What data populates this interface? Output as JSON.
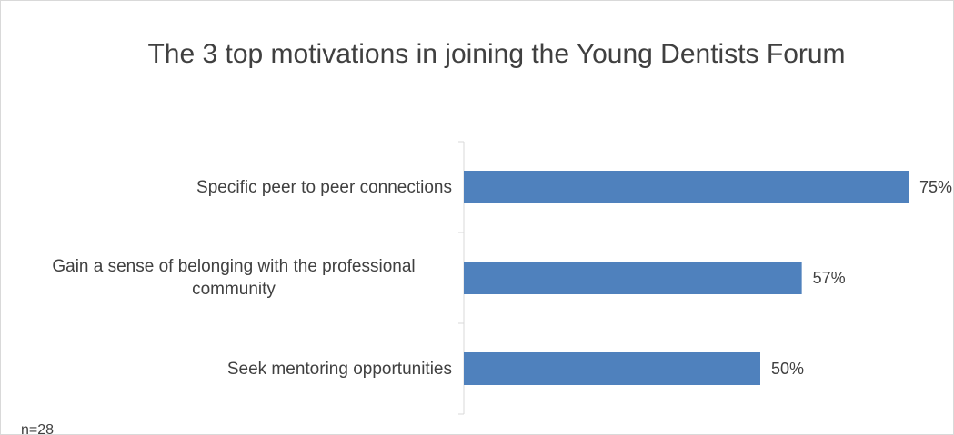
{
  "chart_data": {
    "type": "bar",
    "orientation": "horizontal",
    "title": "The 3 top motivations in joining the Young Dentists Forum",
    "categories": [
      "Specific peer to peer connections",
      "Gain a sense of belonging with the professional community",
      "Seek mentoring opportunities"
    ],
    "values": [
      75,
      57,
      50
    ],
    "value_labels": [
      "75%",
      "57%",
      "50%"
    ],
    "color": "#4f81bd",
    "note": "n=28"
  }
}
